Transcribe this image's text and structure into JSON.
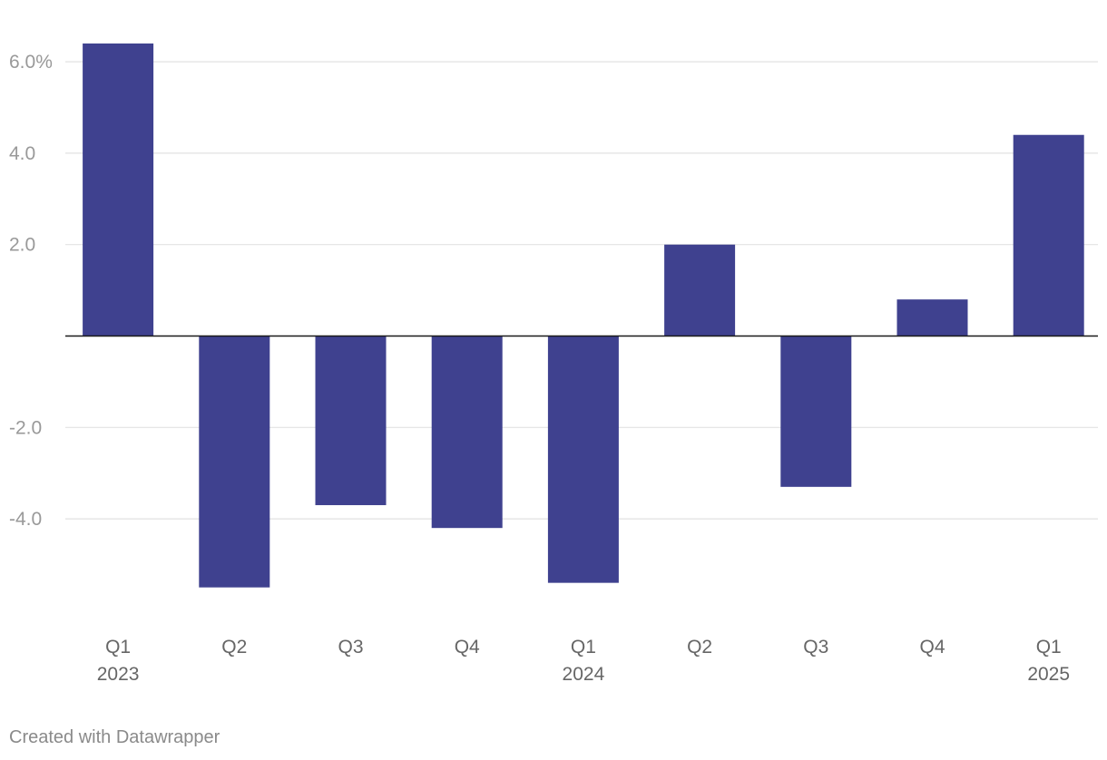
{
  "chart_data": {
    "type": "bar",
    "categories": [
      {
        "quarter": "Q1",
        "year": "2023"
      },
      {
        "quarter": "Q2",
        "year": ""
      },
      {
        "quarter": "Q3",
        "year": ""
      },
      {
        "quarter": "Q4",
        "year": ""
      },
      {
        "quarter": "Q1",
        "year": "2024"
      },
      {
        "quarter": "Q2",
        "year": ""
      },
      {
        "quarter": "Q3",
        "year": ""
      },
      {
        "quarter": "Q4",
        "year": ""
      },
      {
        "quarter": "Q1",
        "year": "2025"
      }
    ],
    "values": [
      6.4,
      -5.5,
      -3.7,
      -4.2,
      -5.4,
      2.0,
      -3.3,
      0.8,
      4.4
    ],
    "yticks": [
      {
        "value": 6,
        "label": "6.0%"
      },
      {
        "value": 4,
        "label": "4.0"
      },
      {
        "value": 2,
        "label": "2.0"
      },
      {
        "value": -2,
        "label": "-2.0"
      },
      {
        "value": -4,
        "label": "-4.0"
      }
    ],
    "ylim": [
      -6.0,
      7.0
    ],
    "grid": true,
    "title": "",
    "xlabel": "",
    "ylabel": "",
    "bar_color": "#3f418f"
  },
  "footer": {
    "credit": "Created with Datawrapper"
  }
}
